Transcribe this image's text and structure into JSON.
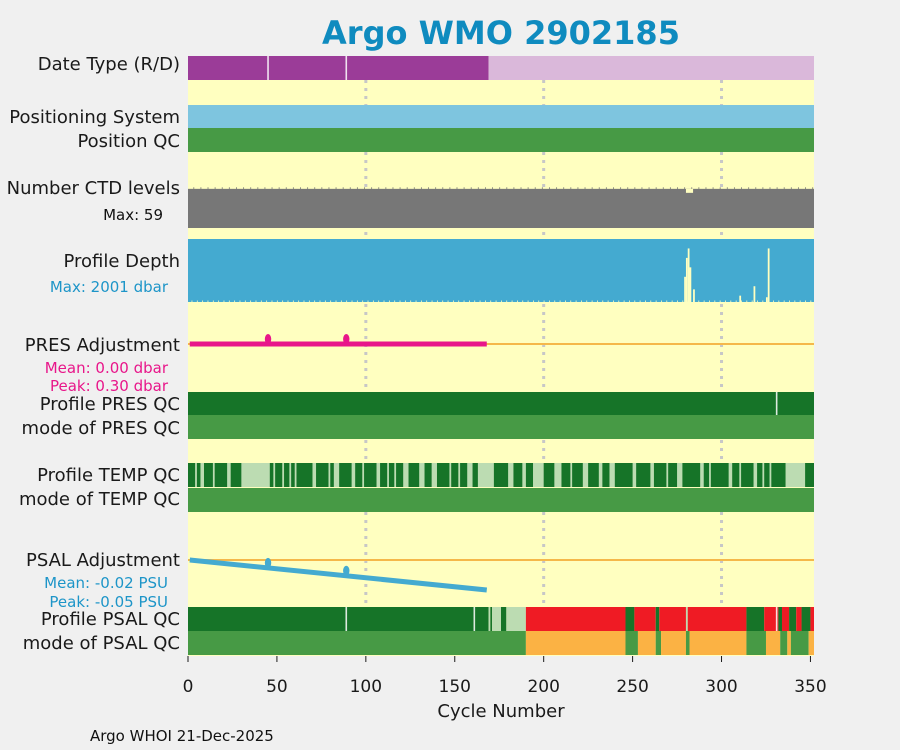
{
  "chart_data": {
    "type": "table",
    "title": "Argo WMO 2902185",
    "xlabel": "Cycle Number",
    "xlim": [
      0,
      352
    ],
    "x_ticks": [
      0,
      50,
      100,
      150,
      200,
      250,
      300,
      350
    ],
    "x_tick_labels": [
      "0",
      "50",
      "100",
      "150",
      "200",
      "250",
      "300",
      "350"
    ],
    "grid_lines": [
      100,
      200,
      300
    ],
    "footer": "Argo WHOI 21-Dec-2025",
    "rows": {
      "date_type": {
        "label": "Date Type (R/D)",
        "segments": [
          {
            "start": 0,
            "end": 169,
            "color": "#9b3c98"
          },
          {
            "start": 169,
            "end": 352,
            "color": "#dab8da"
          }
        ],
        "separators": [
          45,
          89
        ]
      },
      "positioning_system": {
        "label": "Positioning System",
        "segments": [
          {
            "start": 0,
            "end": 352,
            "color": "#7ec5df"
          }
        ]
      },
      "position_qc": {
        "label": "Position QC",
        "segments": [
          {
            "start": 0,
            "end": 352,
            "color": "#479a45"
          }
        ]
      },
      "ctd_levels": {
        "label": "Number CTD levels",
        "sublabel": "Max: 59",
        "max": 59,
        "typical_value": 55,
        "color": "#777777"
      },
      "profile_depth": {
        "label": "Profile Depth",
        "sublabel": "Max: 2001 dbar",
        "max": 2001,
        "typical_value": 2001,
        "color": "#44aad0",
        "dips": [
          {
            "cycle": 279,
            "value": 1200
          },
          {
            "cycle": 280,
            "value": 600
          },
          {
            "cycle": 281,
            "value": 300
          },
          {
            "cycle": 282,
            "value": 900
          },
          {
            "cycle": 284,
            "value": 1600
          },
          {
            "cycle": 310,
            "value": 1800
          },
          {
            "cycle": 318,
            "value": 1500
          },
          {
            "cycle": 325,
            "value": 1850
          },
          {
            "cycle": 326,
            "value": 300
          }
        ]
      },
      "pres_adjustment": {
        "label": "PRES Adjustment",
        "mean_label": "Mean: 0.00 dbar",
        "peak_label": "Peak: 0.30 dbar",
        "color": "#e8168a",
        "zero_line_color": "#f5b84a",
        "range": [
          -1,
          1
        ],
        "x": [
          1,
          168
        ],
        "y": [
          0.0,
          0.0
        ],
        "spikes": [
          {
            "cycle": 45,
            "value": 0.3
          },
          {
            "cycle": 89,
            "value": 0.3
          }
        ]
      },
      "profile_pres_qc": {
        "label": "Profile PRES QC",
        "segments": [
          {
            "start": 0,
            "end": 352,
            "color": "#167428"
          }
        ],
        "separators": [
          331
        ]
      },
      "mode_pres_qc": {
        "label": "mode of PRES QC",
        "segments": [
          {
            "start": 0,
            "end": 352,
            "color": "#479a45"
          }
        ]
      },
      "profile_temp_qc": {
        "label": "Profile TEMP QC",
        "base_color": "#167428",
        "light_color": "#bcdcb2",
        "light_segments": [
          [
            4,
            5
          ],
          [
            7,
            9
          ],
          [
            14,
            15
          ],
          [
            22,
            24
          ],
          [
            30,
            46
          ],
          [
            48,
            49
          ],
          [
            53,
            54
          ],
          [
            57,
            58
          ],
          [
            60,
            61
          ],
          [
            70,
            72
          ],
          [
            79,
            80
          ],
          [
            82,
            85
          ],
          [
            92,
            94
          ],
          [
            98,
            99
          ],
          [
            106,
            108
          ],
          [
            112,
            113
          ],
          [
            116,
            117
          ],
          [
            121,
            124
          ],
          [
            130,
            133
          ],
          [
            137,
            140
          ],
          [
            147,
            148
          ],
          [
            152,
            153
          ],
          [
            157,
            160
          ],
          [
            163,
            172
          ],
          [
            180,
            183
          ],
          [
            188,
            190
          ],
          [
            194,
            200
          ],
          [
            206,
            210
          ],
          [
            215,
            216
          ],
          [
            222,
            225
          ],
          [
            231,
            233
          ],
          [
            237,
            240
          ],
          [
            250,
            252
          ],
          [
            260,
            262
          ],
          [
            269,
            270
          ],
          [
            275,
            278
          ],
          [
            288,
            290
          ],
          [
            293,
            294
          ],
          [
            304,
            306
          ],
          [
            310,
            311
          ],
          [
            318,
            320
          ],
          [
            323,
            324
          ],
          [
            327,
            328
          ],
          [
            336,
            347
          ]
        ]
      },
      "mode_temp_qc": {
        "label": "mode of TEMP QC",
        "segments": [
          {
            "start": 0,
            "end": 352,
            "color": "#479a45"
          }
        ]
      },
      "psal_adjustment": {
        "label": "PSAL Adjustment",
        "mean_label": "Mean: -0.02 PSU",
        "peak_label": "Peak: -0.05 PSU",
        "color": "#44aad0",
        "zero_line_color": "#f5b84a",
        "range": [
          -0.06,
          0.06
        ],
        "x": [
          1,
          168
        ],
        "y": [
          0.0,
          -0.05
        ],
        "spikes": [
          {
            "cycle": 45,
            "value": 0.005
          },
          {
            "cycle": 89,
            "value": 0.005
          }
        ]
      },
      "profile_psal_qc": {
        "label": "Profile PSAL QC",
        "segments": [
          {
            "start": 0,
            "end": 169,
            "color": "#167428"
          },
          {
            "start": 169,
            "end": 170,
            "color": "#bcdcb2"
          },
          {
            "start": 170,
            "end": 171,
            "color": "#167428"
          },
          {
            "start": 171,
            "end": 176,
            "color": "#bcdcb2"
          },
          {
            "start": 176,
            "end": 179,
            "color": "#167428"
          },
          {
            "start": 179,
            "end": 190,
            "color": "#bcdcb2"
          },
          {
            "start": 190,
            "end": 246,
            "color": "#ef1b24"
          },
          {
            "start": 246,
            "end": 251,
            "color": "#167428"
          },
          {
            "start": 251,
            "end": 263,
            "color": "#ef1b24"
          },
          {
            "start": 263,
            "end": 265,
            "color": "#167428"
          },
          {
            "start": 265,
            "end": 280,
            "color": "#ef1b24"
          },
          {
            "start": 280,
            "end": 281,
            "color": "#bcdcb2"
          },
          {
            "start": 281,
            "end": 314,
            "color": "#ef1b24"
          },
          {
            "start": 314,
            "end": 324,
            "color": "#167428"
          },
          {
            "start": 324,
            "end": 332,
            "color": "#ef1b24"
          },
          {
            "start": 332,
            "end": 334,
            "color": "#167428"
          },
          {
            "start": 334,
            "end": 338,
            "color": "#ef1b24"
          },
          {
            "start": 338,
            "end": 342,
            "color": "#167428"
          },
          {
            "start": 342,
            "end": 345,
            "color": "#ef1b24"
          },
          {
            "start": 345,
            "end": 350,
            "color": "#167428"
          },
          {
            "start": 350,
            "end": 352,
            "color": "#ef1b24"
          }
        ],
        "separators": [
          89,
          161,
          331
        ]
      },
      "mode_psal_qc": {
        "label": "mode of PSAL QC",
        "segments": [
          {
            "start": 0,
            "end": 190,
            "color": "#479a45"
          },
          {
            "start": 190,
            "end": 246,
            "color": "#fbb244"
          },
          {
            "start": 246,
            "end": 253,
            "color": "#479a45"
          },
          {
            "start": 253,
            "end": 263,
            "color": "#fbb244"
          },
          {
            "start": 263,
            "end": 266,
            "color": "#479a45"
          },
          {
            "start": 266,
            "end": 280,
            "color": "#fbb244"
          },
          {
            "start": 280,
            "end": 282,
            "color": "#479a45"
          },
          {
            "start": 282,
            "end": 314,
            "color": "#fbb244"
          },
          {
            "start": 314,
            "end": 325,
            "color": "#479a45"
          },
          {
            "start": 325,
            "end": 333,
            "color": "#fbb244"
          },
          {
            "start": 333,
            "end": 337,
            "color": "#479a45"
          },
          {
            "start": 337,
            "end": 339,
            "color": "#fbb244"
          },
          {
            "start": 339,
            "end": 349,
            "color": "#479a45"
          },
          {
            "start": 349,
            "end": 352,
            "color": "#fbb244"
          }
        ]
      }
    }
  },
  "colors": {
    "panel_background": "#ffffc0",
    "figure_background": "#f0f0f0",
    "title": "#0f8bbf",
    "grid": "#c7c7c7",
    "pres_text": "#e8168a",
    "psal_text": "#1d95c8"
  }
}
